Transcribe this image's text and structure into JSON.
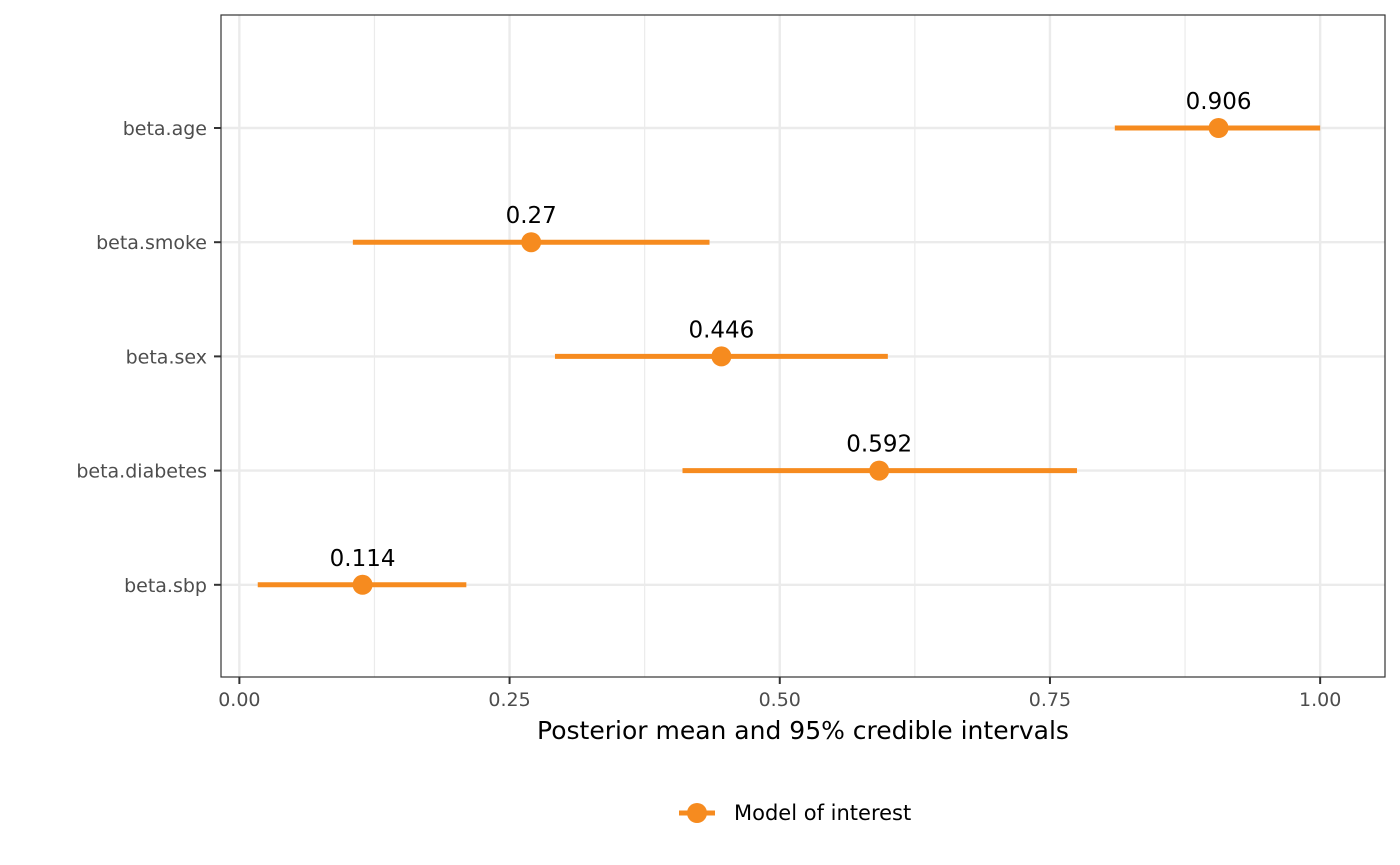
{
  "chart_data": {
    "type": "scatter",
    "xlabel": "Posterior mean and 95% credible intervals",
    "ylabel": "",
    "xlim": [
      -0.017,
      1.06
    ],
    "x_ticks": [
      0.0,
      0.25,
      0.5,
      0.75,
      1.0
    ],
    "x_tick_labels": [
      "0.00",
      "0.25",
      "0.50",
      "0.75",
      "1.00"
    ],
    "categories": [
      "beta.age",
      "beta.smoke",
      "beta.sex",
      "beta.diabetes",
      "beta.sbp"
    ],
    "series": [
      {
        "name": "Model of interest",
        "color": "#f68b1f",
        "points": [
          {
            "category": "beta.age",
            "mean": 0.906,
            "lower": 0.81,
            "upper": 1.0,
            "label": "0.906"
          },
          {
            "category": "beta.smoke",
            "mean": 0.27,
            "lower": 0.105,
            "upper": 0.435,
            "label": "0.27"
          },
          {
            "category": "beta.sex",
            "mean": 0.446,
            "lower": 0.292,
            "upper": 0.6,
            "label": "0.446"
          },
          {
            "category": "beta.diabetes",
            "mean": 0.592,
            "lower": 0.41,
            "upper": 0.775,
            "label": "0.592"
          },
          {
            "category": "beta.sbp",
            "mean": 0.114,
            "lower": 0.017,
            "upper": 0.21,
            "label": "0.114"
          }
        ]
      }
    ],
    "grid": true,
    "legend": {
      "position": "bottom",
      "entries": [
        "Model of interest"
      ]
    }
  }
}
